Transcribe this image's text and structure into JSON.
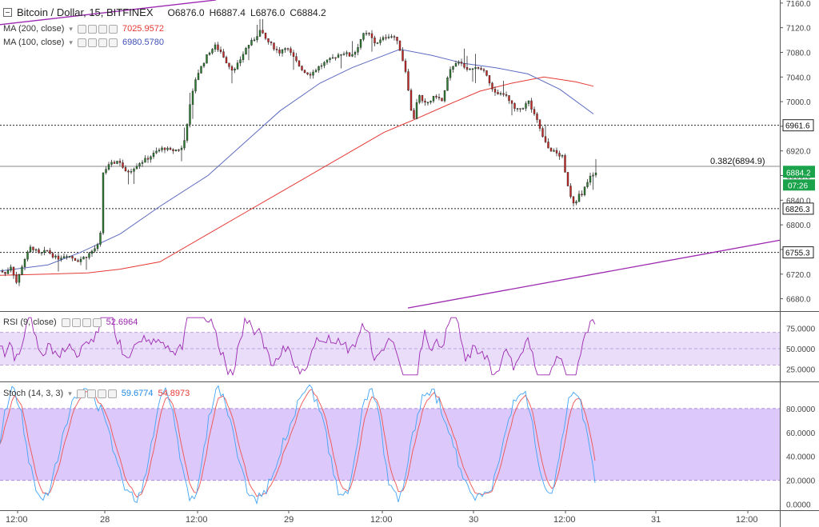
{
  "header": {
    "symbol": "Bitcoin / Dollar, 15, BITFINEX",
    "open": "O6876.0",
    "high": "H6887.4",
    "low": "L6876.0",
    "close": "C6884.2",
    "ma200_label": "MA (200, close)",
    "ma200_value": "7025.9572",
    "ma100_label": "MA (100, close)",
    "ma100_value": "6980.5780",
    "rsi_label": "RSI (9, close)",
    "rsi_value": "52.6964",
    "stoch_label": "Stoch (14, 3, 3)",
    "stoch_k_value": "59.6774",
    "stoch_d_value": "54.8973"
  },
  "colors": {
    "up": "#2e7d32",
    "down": "#c62828",
    "wick": "#333333",
    "ma200": "#e53935",
    "ma100": "#5c6bc0",
    "trend": "#9c27b0",
    "rsi": "#9c27b0",
    "stoch_k": "#42a5f5",
    "stoch_d": "#ef5350",
    "band": "#e9ddfa",
    "stoch_band": "#dcc8fa",
    "price_tag": "#1aa34a"
  },
  "chart_data": [
    {
      "type": "candlestick",
      "title": "Bitcoin / Dollar, 15, BITFINEX",
      "ylim": [
        6660,
        7165
      ],
      "y_ticks": [
        "7160.0",
        "7120.0",
        "7080.0",
        "7040.0",
        "7000.0",
        "6960.0",
        "6920.0",
        "6880.0",
        "6840.0",
        "6800.0",
        "6760.0",
        "6720.0",
        "6680.0"
      ],
      "x_ticks": [
        "12:00",
        "28",
        "12:00",
        "29",
        "12:00",
        "30",
        "12:00",
        "31",
        "12:00"
      ],
      "price_path": [
        [
          0,
          6725
        ],
        [
          6,
          6720
        ],
        [
          12,
          6735
        ],
        [
          20,
          6705
        ],
        [
          28,
          6740
        ],
        [
          38,
          6765
        ],
        [
          48,
          6752
        ],
        [
          58,
          6758
        ],
        [
          70,
          6745
        ],
        [
          82,
          6752
        ],
        [
          96,
          6742
        ],
        [
          108,
          6750
        ],
        [
          118,
          6762
        ],
        [
          124,
          6770
        ],
        [
          128,
          6885
        ],
        [
          134,
          6895
        ],
        [
          140,
          6900
        ],
        [
          148,
          6905
        ],
        [
          156,
          6885
        ],
        [
          164,
          6890
        ],
        [
          172,
          6900
        ],
        [
          180,
          6905
        ],
        [
          188,
          6912
        ],
        [
          196,
          6920
        ],
        [
          204,
          6925
        ],
        [
          212,
          6920
        ],
        [
          220,
          6922
        ],
        [
          228,
          6925
        ],
        [
          236,
          6990
        ],
        [
          244,
          7040
        ],
        [
          252,
          7060
        ],
        [
          260,
          7080
        ],
        [
          268,
          7090
        ],
        [
          276,
          7080
        ],
        [
          284,
          7060
        ],
        [
          292,
          7050
        ],
        [
          300,
          7070
        ],
        [
          308,
          7090
        ],
        [
          316,
          7100
        ],
        [
          324,
          7115
        ],
        [
          332,
          7100
        ],
        [
          340,
          7090
        ],
        [
          348,
          7080
        ],
        [
          356,
          7090
        ],
        [
          364,
          7075
        ],
        [
          372,
          7060
        ],
        [
          380,
          7048
        ],
        [
          388,
          7045
        ],
        [
          396,
          7055
        ],
        [
          404,
          7062
        ],
        [
          412,
          7068
        ],
        [
          420,
          7075
        ],
        [
          428,
          7080
        ],
        [
          436,
          7075
        ],
        [
          444,
          7082
        ],
        [
          452,
          7108
        ],
        [
          460,
          7110
        ],
        [
          468,
          7095
        ],
        [
          476,
          7100
        ],
        [
          484,
          7108
        ],
        [
          492,
          7105
        ],
        [
          498,
          7090
        ],
        [
          504,
          7060
        ],
        [
          508,
          7040
        ],
        [
          512,
          6990
        ],
        [
          516,
          6970
        ],
        [
          520,
          7000
        ],
        [
          524,
          7010
        ],
        [
          528,
          6995
        ],
        [
          536,
          7000
        ],
        [
          544,
          7010
        ],
        [
          552,
          7000
        ],
        [
          560,
          7045
        ],
        [
          568,
          7065
        ],
        [
          576,
          7060
        ],
        [
          584,
          7050
        ],
        [
          592,
          7058
        ],
        [
          600,
          7050
        ],
        [
          608,
          7045
        ],
        [
          614,
          7020
        ],
        [
          620,
          7010
        ],
        [
          628,
          7015
        ],
        [
          636,
          7000
        ],
        [
          644,
          6985
        ],
        [
          652,
          6990
        ],
        [
          660,
          7000
        ],
        [
          666,
          6980
        ],
        [
          672,
          6965
        ],
        [
          678,
          6940
        ],
        [
          684,
          6925
        ],
        [
          690,
          6920
        ],
        [
          696,
          6915
        ],
        [
          702,
          6910
        ],
        [
          706,
          6880
        ],
        [
          710,
          6860
        ],
        [
          714,
          6840
        ],
        [
          718,
          6835
        ],
        [
          722,
          6850
        ],
        [
          726,
          6845
        ],
        [
          730,
          6860
        ],
        [
          734,
          6870
        ],
        [
          738,
          6880
        ],
        [
          742,
          6880
        ],
        [
          745,
          6884
        ]
      ],
      "ma200": [
        [
          0,
          6718
        ],
        [
          60,
          6720
        ],
        [
          110,
          6722
        ],
        [
          150,
          6728
        ],
        [
          200,
          6740
        ],
        [
          260,
          6785
        ],
        [
          320,
          6830
        ],
        [
          380,
          6875
        ],
        [
          440,
          6920
        ],
        [
          480,
          6950
        ],
        [
          520,
          6972
        ],
        [
          560,
          6995
        ],
        [
          600,
          7017
        ],
        [
          640,
          7030
        ],
        [
          680,
          7040
        ],
        [
          720,
          7032
        ],
        [
          742,
          7025
        ]
      ],
      "ma100": [
        [
          0,
          6725
        ],
        [
          60,
          6735
        ],
        [
          100,
          6755
        ],
        [
          150,
          6785
        ],
        [
          200,
          6830
        ],
        [
          260,
          6880
        ],
        [
          320,
          6950
        ],
        [
          350,
          6985
        ],
        [
          400,
          7030
        ],
        [
          440,
          7055
        ],
        [
          480,
          7075
        ],
        [
          500,
          7085
        ],
        [
          540,
          7075
        ],
        [
          580,
          7062
        ],
        [
          620,
          7055
        ],
        [
          660,
          7045
        ],
        [
          700,
          7020
        ],
        [
          742,
          6980
        ]
      ],
      "horizontal_levels": [
        {
          "value": 6961.6,
          "label": "6961.6",
          "style": "dotted"
        },
        {
          "value": 6894.9,
          "label": "0.382(6894.9)",
          "style": "solid"
        },
        {
          "value": 6826.3,
          "label": "6826.3",
          "style": "dotted"
        },
        {
          "value": 6755.3,
          "label": "6755.3",
          "style": "dotted"
        }
      ],
      "trendlines": [
        {
          "from": [
            0,
            7125
          ],
          "to": [
            270,
            7165
          ]
        },
        {
          "from": [
            510,
            6665
          ],
          "to": [
            975,
            6775
          ]
        }
      ],
      "last_price": "6884.2",
      "countdown": "07:26"
    },
    {
      "type": "line",
      "title": "RSI (9, close)",
      "ylim": [
        10,
        95
      ],
      "y_ticks": [
        "75.0000",
        "50.0000",
        "25.0000"
      ],
      "band": [
        30,
        70
      ]
    },
    {
      "type": "line",
      "title": "Stoch (14, 3, 3)",
      "ylim": [
        -5,
        102
      ],
      "y_ticks": [
        "80.0000",
        "60.0000",
        "40.0000",
        "20.0000",
        "0.0000"
      ],
      "band": [
        20,
        80
      ]
    }
  ]
}
